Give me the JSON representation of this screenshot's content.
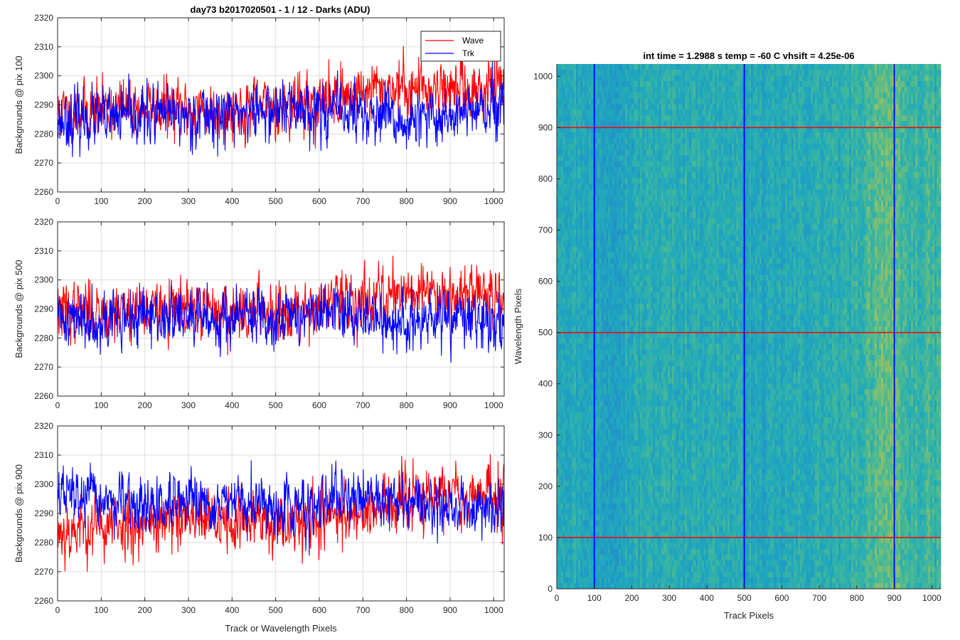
{
  "figure_title": "day73 b2017020501 - 1 / 12 - Darks (ADU)",
  "chart_data": [
    {
      "type": "line",
      "title": "day73 b2017020501 - 1 / 12 - Darks (ADU)",
      "ylabel": "Backgrounds @ pix 100",
      "xlabel": "",
      "xlim": [
        0,
        1024
      ],
      "ylim": [
        2260,
        2320
      ],
      "xticks": [
        "0",
        "100",
        "200",
        "300",
        "400",
        "500",
        "600",
        "700",
        "800",
        "900",
        "1000"
      ],
      "yticks": [
        "2260",
        "2270",
        "2280",
        "2290",
        "2300",
        "2310",
        "2320"
      ],
      "grid": true,
      "legend": {
        "placement": "top-right",
        "entries": [
          "Wave",
          "Trk"
        ]
      },
      "series": [
        {
          "name": "Wave",
          "color": "#ff0000",
          "trend_x": [
            0,
            200,
            400,
            600,
            680,
            760,
            900,
            1024
          ],
          "trend_y": [
            2287,
            2289,
            2288,
            2291,
            2294,
            2296,
            2296,
            2295
          ],
          "noise": 6.5,
          "seed": 11
        },
        {
          "name": "Trk",
          "color": "#0000ff",
          "trend_x": [
            0,
            200,
            400,
            560,
            700,
            800,
            900,
            1024
          ],
          "trend_y": [
            2285,
            2286,
            2287,
            2289,
            2287,
            2283,
            2287,
            2288
          ],
          "noise": 6.5,
          "seed": 23
        }
      ]
    },
    {
      "type": "line",
      "ylabel": "Backgrounds @ pix 500",
      "xlabel": "",
      "xlim": [
        0,
        1024
      ],
      "ylim": [
        2260,
        2320
      ],
      "xticks": [
        "0",
        "100",
        "200",
        "300",
        "400",
        "500",
        "600",
        "700",
        "800",
        "900",
        "1000"
      ],
      "yticks": [
        "2260",
        "2270",
        "2280",
        "2290",
        "2300",
        "2310",
        "2320"
      ],
      "grid": true,
      "series": [
        {
          "name": "Wave",
          "color": "#ff0000",
          "trend_x": [
            0,
            200,
            400,
            600,
            700,
            800,
            900,
            1024
          ],
          "trend_y": [
            2289,
            2290,
            2289,
            2291,
            2293,
            2297,
            2296,
            2295
          ],
          "noise": 6.5,
          "seed": 37
        },
        {
          "name": "Trk",
          "color": "#0000ff",
          "trend_x": [
            0,
            200,
            400,
            600,
            700,
            800,
            900,
            1024
          ],
          "trend_y": [
            2287,
            2287,
            2287,
            2288,
            2288,
            2284,
            2287,
            2285
          ],
          "noise": 6.5,
          "seed": 41
        }
      ]
    },
    {
      "type": "line",
      "ylabel": "Backgrounds @ pix 900",
      "xlabel": "Track or Wavelength Pixels",
      "xlim": [
        0,
        1024
      ],
      "ylim": [
        2260,
        2320
      ],
      "xticks": [
        "0",
        "100",
        "200",
        "300",
        "400",
        "500",
        "600",
        "700",
        "800",
        "900",
        "1000"
      ],
      "yticks": [
        "2260",
        "2270",
        "2280",
        "2290",
        "2300",
        "2310",
        "2320"
      ],
      "grid": true,
      "series": [
        {
          "name": "Wave",
          "color": "#ff0000",
          "trend_x": [
            0,
            200,
            400,
            600,
            700,
            800,
            900,
            1024
          ],
          "trend_y": [
            2284,
            2287,
            2287,
            2288,
            2291,
            2294,
            2297,
            2296
          ],
          "noise": 7,
          "seed": 53
        },
        {
          "name": "Trk",
          "color": "#0000ff",
          "trend_x": [
            0,
            200,
            400,
            600,
            700,
            800,
            900,
            1024
          ],
          "trend_y": [
            2297,
            2292,
            2293,
            2292,
            2297,
            2294,
            2292,
            2292
          ],
          "noise": 6,
          "seed": 67
        }
      ]
    },
    {
      "type": "heatmap",
      "title": "int time = 1.2988 s    temp = -60 C    vhsift = 4.25e-06",
      "xlabel": "Track Pixels",
      "ylabel": "Wavelength Pixels",
      "xlim": [
        0,
        1024
      ],
      "ylim": [
        0,
        1024
      ],
      "xticks": [
        "0",
        "100",
        "200",
        "300",
        "400",
        "500",
        "600",
        "700",
        "800",
        "900",
        "1000"
      ],
      "yticks": [
        "0",
        "100",
        "200",
        "300",
        "400",
        "500",
        "600",
        "700",
        "800",
        "900",
        "1000"
      ],
      "colormap": "parula",
      "vertical_lines": {
        "color": "#0000ff",
        "x": [
          100,
          500,
          900
        ]
      },
      "horizontal_lines": {
        "color": "#ff0000",
        "y": [
          100,
          500,
          900
        ]
      }
    }
  ]
}
